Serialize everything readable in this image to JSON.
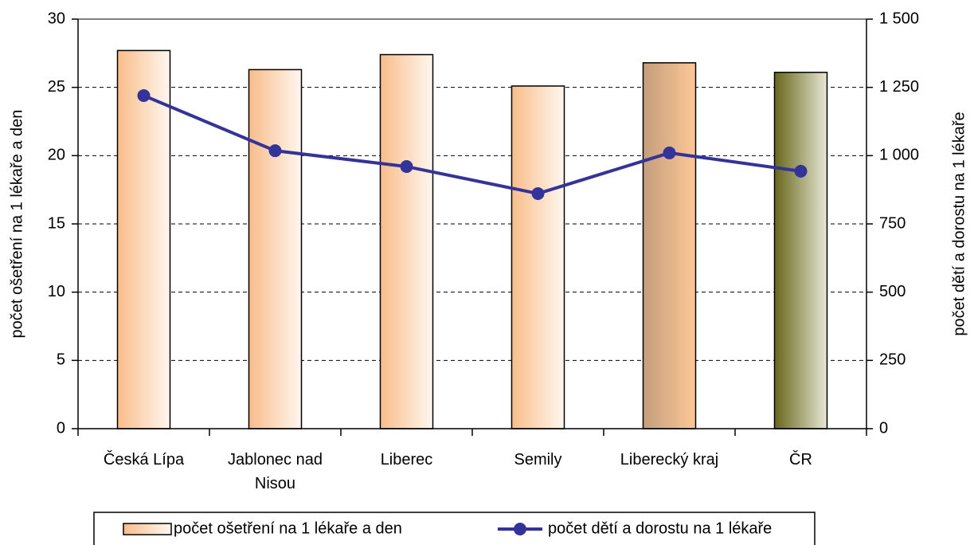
{
  "chart_data": {
    "type": "bar_line",
    "categories": [
      "Česká Lípa",
      "Jablonec nad Nisou",
      "Liberec",
      "Semily",
      "Liberecký kraj",
      "ČR"
    ],
    "series": [
      {
        "name": "počet ošetření na 1 lékaře a den",
        "type": "bar",
        "color": "#f8bd8a",
        "bar_colors": [
          [
            "#f8bd8a",
            "#fff7f0"
          ],
          [
            "#f8bd8a",
            "#fff7f0"
          ],
          [
            "#f8bd8a",
            "#fff7f0"
          ],
          [
            "#f8bd8a",
            "#fff7f0"
          ],
          [
            "#c49e7c",
            "#fdc796"
          ],
          [
            "#66661a",
            "#e8e8d6"
          ]
        ],
        "values": [
          27.7,
          26.3,
          27.4,
          25.1,
          26.8,
          26.1
        ]
      },
      {
        "name": "počet dětí a dorostu na 1 lékaře",
        "type": "line",
        "axis": "y2",
        "color": "#333399",
        "values": [
          1220,
          1018,
          960,
          861,
          1010,
          943
        ]
      }
    ],
    "ylabel": "počet ošetření na 1 lékaře a den",
    "y2label": "počet dětí a dorostu na 1 lékaře",
    "ylim": [
      0,
      30
    ],
    "yticks": [
      0,
      5,
      10,
      15,
      20,
      25,
      30
    ],
    "y2lim": [
      0,
      1500
    ],
    "y2ticks": [
      0,
      250,
      500,
      750,
      {
        "value": 1000,
        "label": "1 000"
      },
      {
        "value": 1250,
        "label": "1 250"
      },
      {
        "value": 1500,
        "label": "1 500"
      }
    ],
    "grid": true,
    "legend": "bottom"
  }
}
